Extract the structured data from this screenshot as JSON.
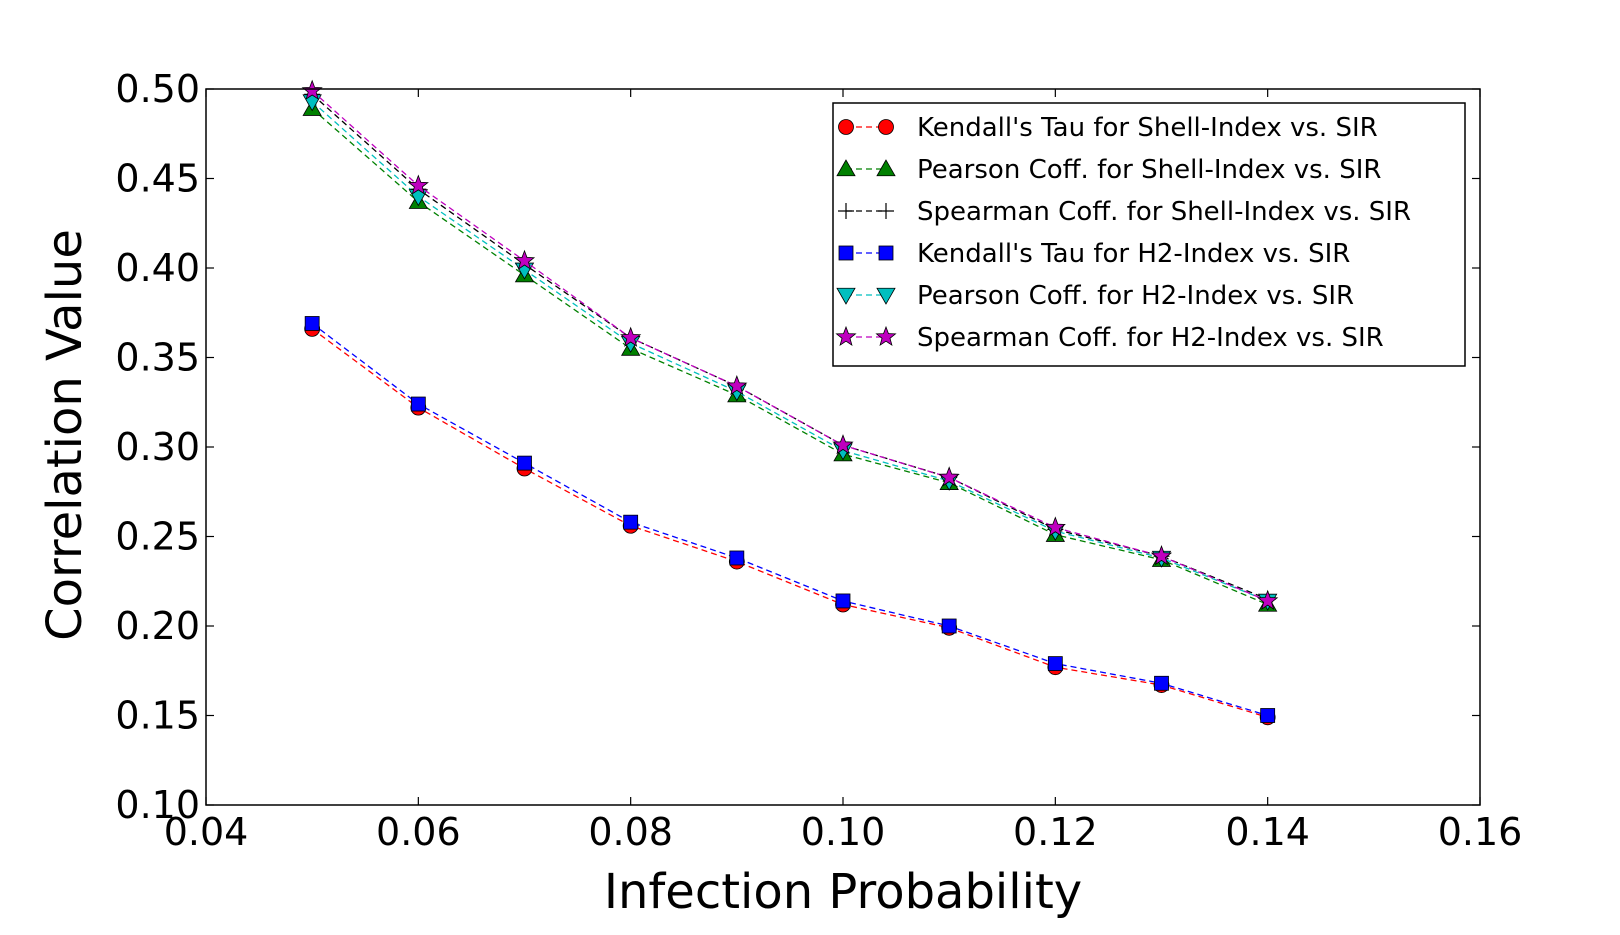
{
  "chart_data": {
    "type": "line",
    "title": "",
    "xlabel": "Infection Probability",
    "ylabel": "Correlation Value",
    "xlim": [
      0.04,
      0.16
    ],
    "ylim": [
      0.1,
      0.5
    ],
    "grid": false,
    "legend_position": "top-right",
    "x_ticks": [
      "0.04",
      "0.06",
      "0.08",
      "0.10",
      "0.12",
      "0.14",
      "0.16"
    ],
    "y_ticks": [
      "0.10",
      "0.15",
      "0.20",
      "0.25",
      "0.30",
      "0.35",
      "0.40",
      "0.45",
      "0.50"
    ],
    "x": [
      0.05,
      0.06,
      0.07,
      0.08,
      0.09,
      0.1,
      0.11,
      0.12,
      0.13,
      0.14
    ],
    "series": [
      {
        "name": "Kendall's Tau for Shell-Index vs. SIR",
        "marker": "circle",
        "color": "#ff0000",
        "values": [
          0.366,
          0.322,
          0.288,
          0.256,
          0.236,
          0.212,
          0.199,
          0.177,
          0.167,
          0.149
        ]
      },
      {
        "name": "Pearson Coff. for Shell-Index vs. SIR",
        "marker": "triangle-up",
        "color": "#008000",
        "values": [
          0.489,
          0.437,
          0.396,
          0.355,
          0.329,
          0.296,
          0.28,
          0.251,
          0.237,
          0.212
        ]
      },
      {
        "name": "Spearman Coff. for Shell-Index vs. SIR",
        "marker": "plus",
        "color": "#000000",
        "values": [
          0.497,
          0.444,
          0.402,
          0.361,
          0.334,
          0.301,
          0.283,
          0.254,
          0.239,
          0.215
        ]
      },
      {
        "name": "Kendall's Tau for H2-Index vs. SIR",
        "marker": "square",
        "color": "#0000ff",
        "values": [
          0.369,
          0.324,
          0.291,
          0.258,
          0.238,
          0.214,
          0.2,
          0.179,
          0.168,
          0.15
        ]
      },
      {
        "name": "Pearson Coff. for H2-Index vs. SIR",
        "marker": "triangle-down",
        "color": "#00bfbf",
        "values": [
          0.493,
          0.44,
          0.399,
          0.358,
          0.331,
          0.298,
          0.281,
          0.253,
          0.238,
          0.214
        ]
      },
      {
        "name": "Spearman Coff. for H2-Index vs. SIR",
        "marker": "star",
        "color": "#bf00bf",
        "values": [
          0.499,
          0.446,
          0.404,
          0.361,
          0.334,
          0.301,
          0.283,
          0.255,
          0.239,
          0.214
        ]
      }
    ]
  }
}
